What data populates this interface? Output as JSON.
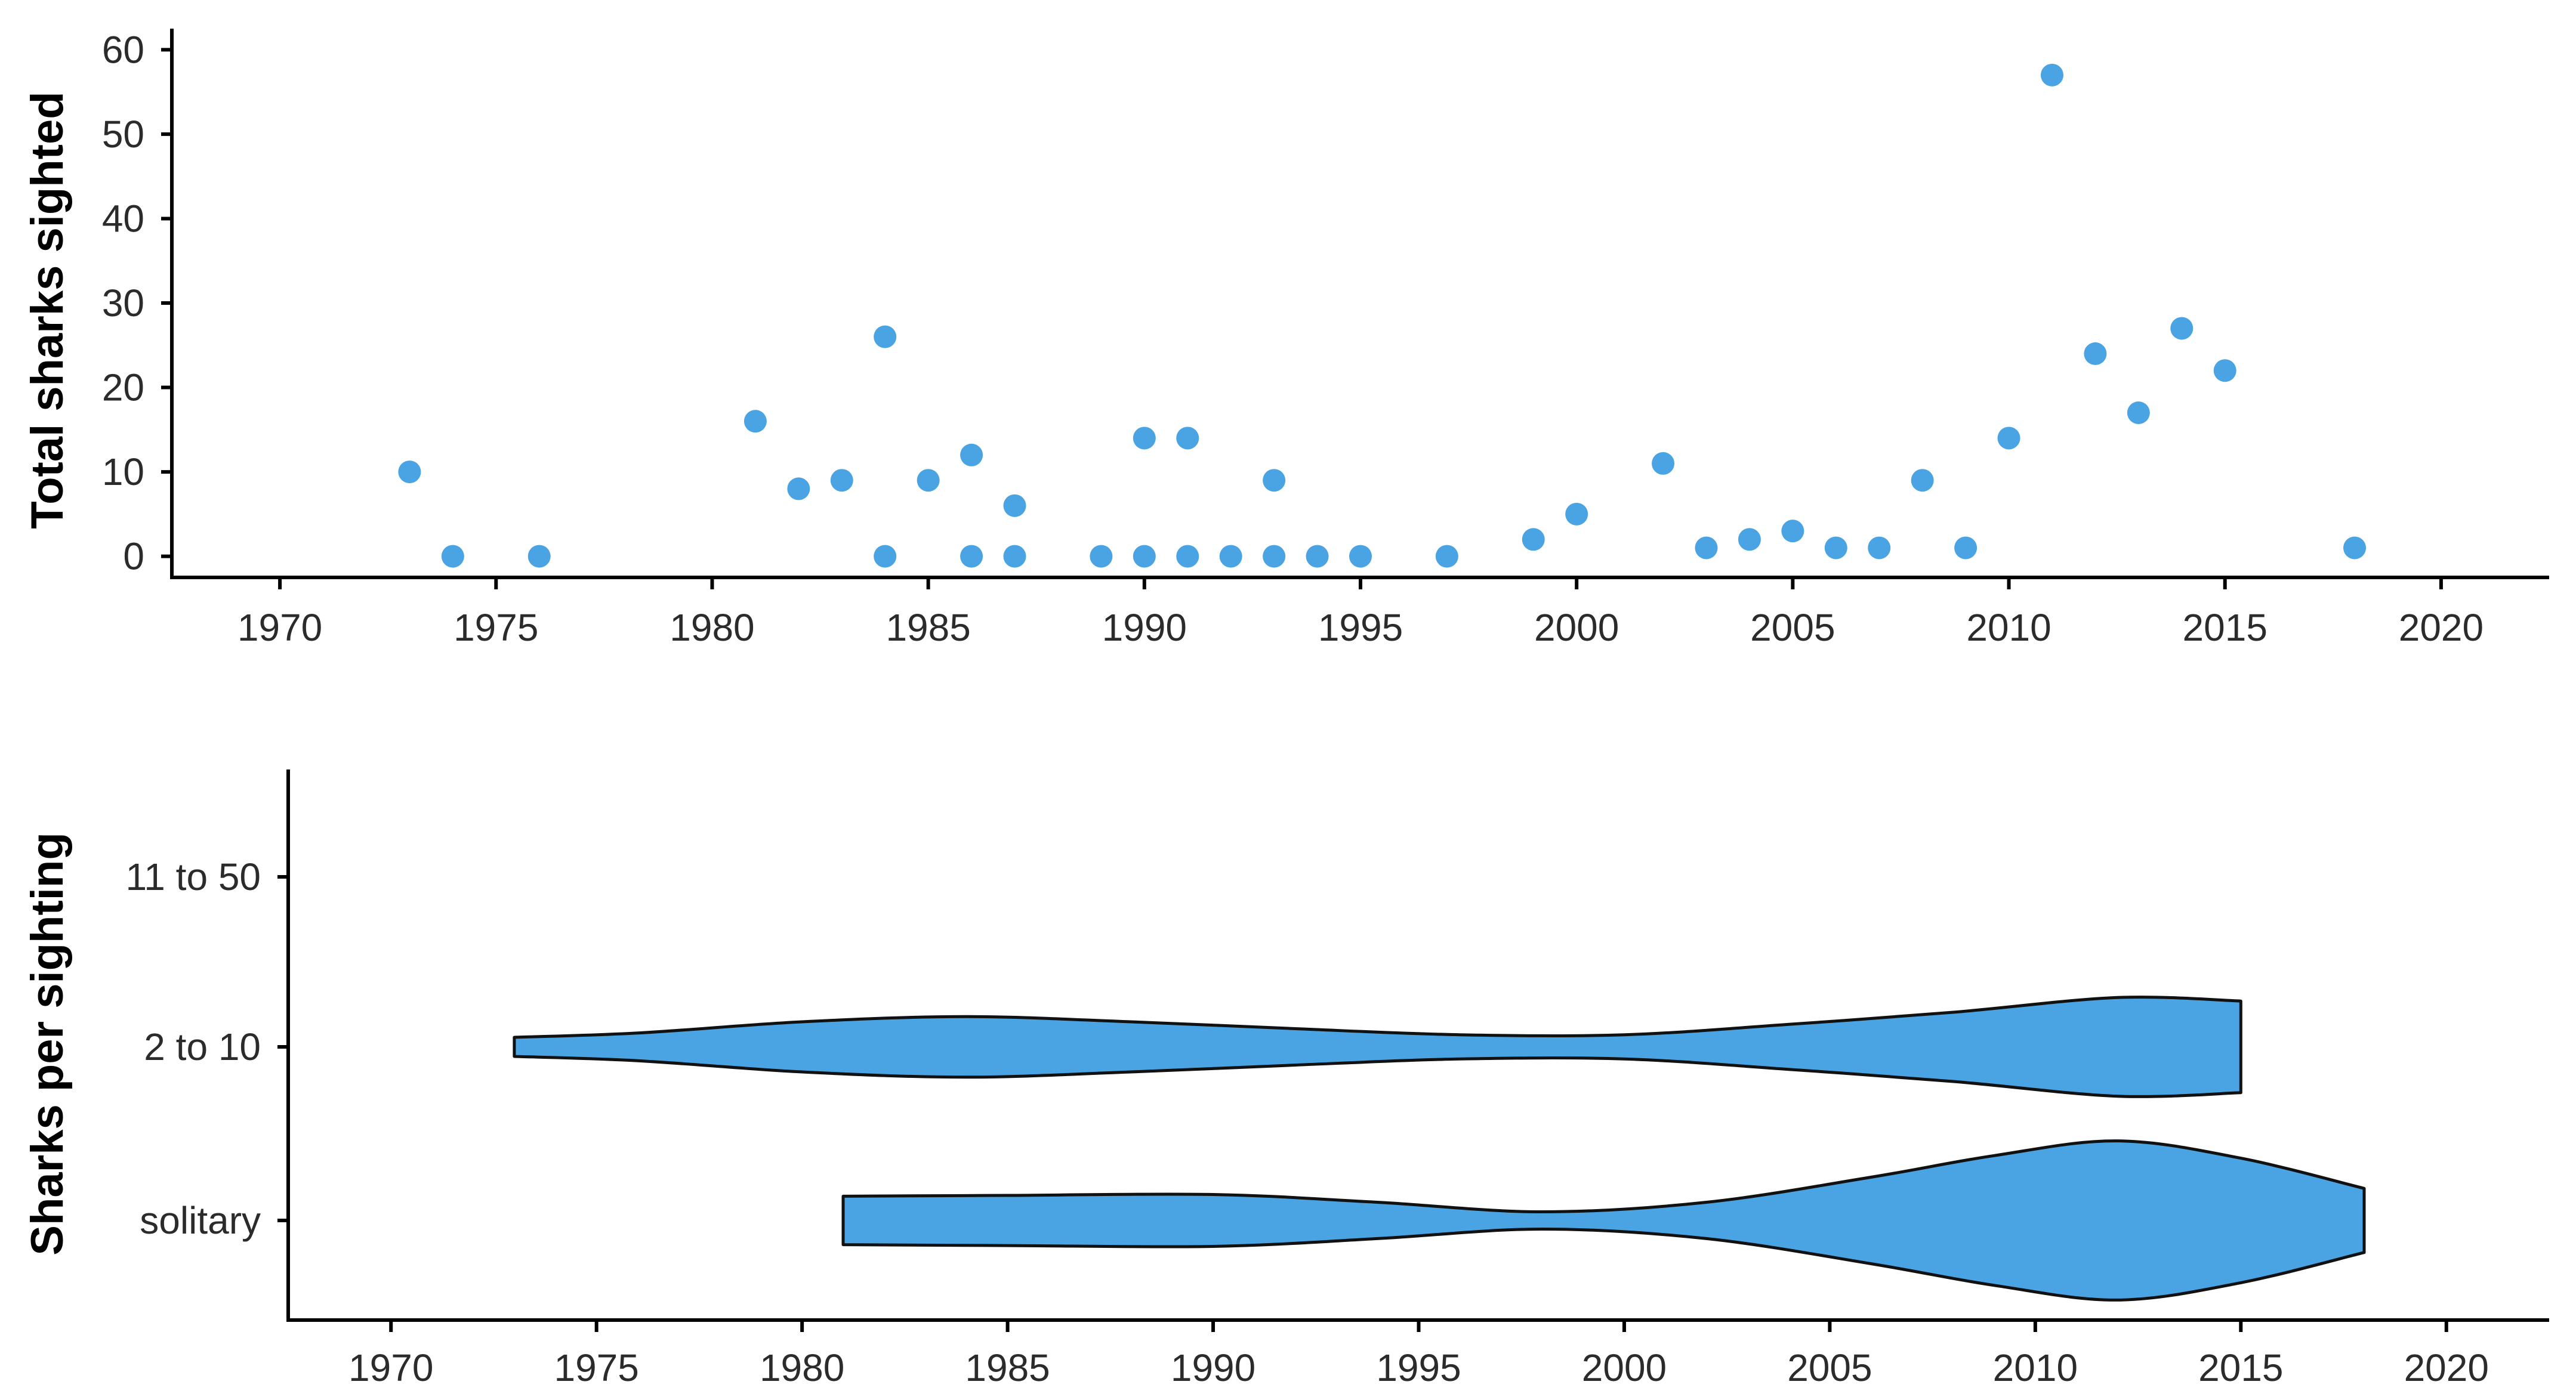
{
  "colors": {
    "accent": "#4aa3e2",
    "outline": "#111111",
    "axis": "#000000"
  },
  "chart_data": [
    {
      "type": "scatter",
      "title": "",
      "xlabel": "",
      "ylabel": "Total sharks sighted",
      "xlim": [
        1967.5,
        2022.5
      ],
      "ylim": [
        -2.5,
        62.5
      ],
      "x_ticks": [
        "1970",
        "1975",
        "1980",
        "1985",
        "1990",
        "1995",
        "2000",
        "2005",
        "2010",
        "2015",
        "2020"
      ],
      "y_ticks": [
        "0",
        "10",
        "20",
        "30",
        "40",
        "50",
        "60"
      ],
      "grid": false,
      "color": "#4aa3e2",
      "points": [
        {
          "x": 1973,
          "y": 10
        },
        {
          "x": 1974,
          "y": 0
        },
        {
          "x": 1976,
          "y": 0
        },
        {
          "x": 1981,
          "y": 16
        },
        {
          "x": 1982,
          "y": 8
        },
        {
          "x": 1983,
          "y": 9
        },
        {
          "x": 1984,
          "y": 26
        },
        {
          "x": 1984,
          "y": 0
        },
        {
          "x": 1985,
          "y": 9
        },
        {
          "x": 1986,
          "y": 12
        },
        {
          "x": 1986,
          "y": 0
        },
        {
          "x": 1987,
          "y": 6
        },
        {
          "x": 1987,
          "y": 0
        },
        {
          "x": 1989,
          "y": 0
        },
        {
          "x": 1990,
          "y": 14
        },
        {
          "x": 1990,
          "y": 0
        },
        {
          "x": 1991,
          "y": 14
        },
        {
          "x": 1991,
          "y": 0
        },
        {
          "x": 1992,
          "y": 0
        },
        {
          "x": 1993,
          "y": 9
        },
        {
          "x": 1993,
          "y": 0
        },
        {
          "x": 1994,
          "y": 0
        },
        {
          "x": 1995,
          "y": 0
        },
        {
          "x": 1997,
          "y": 0
        },
        {
          "x": 1999,
          "y": 2
        },
        {
          "x": 2000,
          "y": 5
        },
        {
          "x": 2002,
          "y": 11
        },
        {
          "x": 2003,
          "y": 1
        },
        {
          "x": 2004,
          "y": 2
        },
        {
          "x": 2005,
          "y": 3
        },
        {
          "x": 2006,
          "y": 1
        },
        {
          "x": 2007,
          "y": 1
        },
        {
          "x": 2008,
          "y": 9
        },
        {
          "x": 2009,
          "y": 1
        },
        {
          "x": 2010,
          "y": 14
        },
        {
          "x": 2011,
          "y": 57
        },
        {
          "x": 2012,
          "y": 24
        },
        {
          "x": 2013,
          "y": 17
        },
        {
          "x": 2014,
          "y": 27
        },
        {
          "x": 2015,
          "y": 22
        },
        {
          "x": 2018,
          "y": 1
        }
      ]
    },
    {
      "type": "violin",
      "title": "",
      "xlabel": "",
      "ylabel": "Sharks per sighting",
      "xlim": [
        1967.5,
        2022.5
      ],
      "x_ticks": [
        "1970",
        "1975",
        "1980",
        "1985",
        "1990",
        "1995",
        "2000",
        "2005",
        "2010",
        "2015",
        "2020"
      ],
      "categories": [
        "11 to 50",
        "2 to 10",
        "solitary"
      ],
      "grid": false,
      "color": "#4aa3e2",
      "violins": [
        {
          "category": "2 to 10",
          "x": [
            1973,
            1976,
            1980,
            1984,
            1988,
            1992,
            1996,
            2000,
            2004,
            2008,
            2012,
            2015
          ],
          "width": [
            0.11,
            0.16,
            0.29,
            0.35,
            0.29,
            0.21,
            0.14,
            0.14,
            0.26,
            0.4,
            0.57,
            0.53
          ]
        },
        {
          "category": "solitary",
          "x": [
            1981,
            1985,
            1990,
            1994,
            1998,
            2002,
            2006,
            2009,
            2012,
            2015,
            2018
          ],
          "width": [
            0.28,
            0.29,
            0.3,
            0.21,
            0.1,
            0.21,
            0.5,
            0.75,
            0.92,
            0.72,
            0.37
          ]
        }
      ]
    }
  ]
}
